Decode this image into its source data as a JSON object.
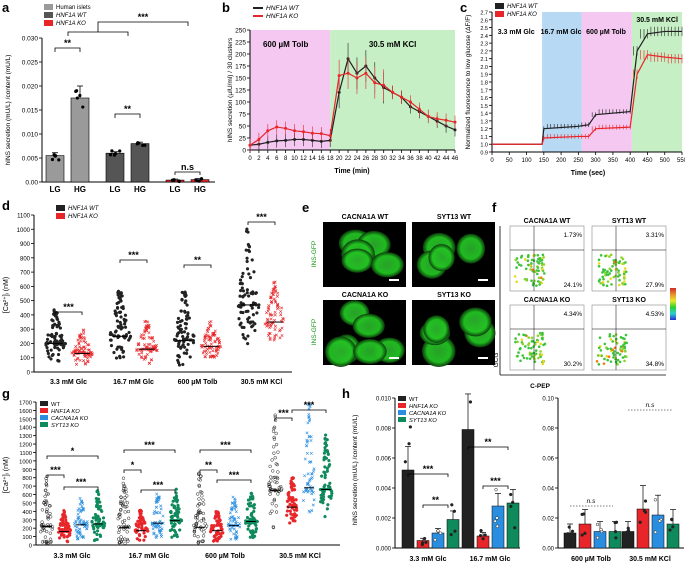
{
  "panels": {
    "a": {
      "label": "a",
      "ylabel": "hINS secretion (mU/L) /content (mU/L)",
      "yticks": [
        "0.00",
        "0.005",
        "0.010",
        "0.015",
        "0.020",
        "0.025",
        "0.030"
      ],
      "legend": [
        "Human islets",
        "HNF1A WT",
        "HNF1A KO"
      ],
      "xlabels": [
        "LG",
        "HG",
        "LG",
        "HG",
        "LG",
        "HG"
      ],
      "sig": [
        "**",
        "**",
        "n.s",
        "***"
      ]
    },
    "b": {
      "label": "b",
      "ylabel": "hINS secretion (µIU/ml) / 30 clusters",
      "xlabel": "Time (min)",
      "yticks": [
        "0",
        "25",
        "50",
        "75",
        "100",
        "125",
        "150",
        "175",
        "200",
        "225",
        "250"
      ],
      "xticks": [
        "0",
        "2",
        "4",
        "6",
        "8",
        "10",
        "12",
        "14",
        "16",
        "18",
        "20",
        "22",
        "24",
        "26",
        "28",
        "30",
        "32",
        "34",
        "36",
        "38",
        "40",
        "42",
        "44",
        "46"
      ],
      "legend": [
        "HNF1A WT",
        "HNF1A KO"
      ],
      "zones": [
        "600 µM Tolb",
        "30.5 mM KCl"
      ]
    },
    "c": {
      "label": "c",
      "ylabel": "Normalized fluorescence to low glucose (ΔF/F)",
      "xlabel": "Time (sec)",
      "yticks": [
        "0.9",
        "1.0",
        "1.1",
        "1.2",
        "1.3",
        "1.4",
        "1.5",
        "1.6",
        "1.7",
        "1.8",
        "1.9",
        "2.0",
        "2.1",
        "2.2",
        "2.3",
        "2.4",
        "2.5",
        "2.6",
        "2.7"
      ],
      "xticks": [
        "0",
        "50",
        "100",
        "150",
        "200",
        "250",
        "300",
        "350",
        "400",
        "450",
        "500",
        "550"
      ],
      "legend": [
        "HNF1A WT",
        "HNF1A KO"
      ],
      "zones": [
        "3.3 mM Glc",
        "16.7 mM Glc",
        "600 µM Tolb",
        "30.5 mM KCl"
      ]
    },
    "d": {
      "label": "d",
      "ylabel": "[Ca²⁺]ᵢ (nM)",
      "yticks": [
        "0",
        "100",
        "200",
        "300",
        "400",
        "500",
        "600",
        "700",
        "800",
        "900",
        "1000",
        "1100"
      ],
      "legend": [
        "HNF1A WT",
        "HNF1A KO"
      ],
      "groups": [
        "3.3 mM Glc",
        "16.7 mM Glc",
        "600 µM Tolb",
        "30.5 mM KCl"
      ],
      "sig": [
        "***",
        "***",
        "**",
        "***"
      ]
    },
    "e": {
      "label": "e",
      "titles": [
        "CACNA1A WT",
        "SYT13 WT",
        "CACNA1A KO",
        "SYT13 KO"
      ],
      "side": [
        "INS-GFP",
        "INS-GFP"
      ]
    },
    "f": {
      "label": "f",
      "titles": [
        "CACNA1A WT",
        "SYT13 WT",
        "CACNA1A KO",
        "SYT13 KO"
      ],
      "q_top": [
        "1.73%",
        "3.31%",
        "4.34%",
        "4.53%"
      ],
      "q_bot": [
        "24.1%",
        "27.9%",
        "30.2%",
        "34.8%"
      ],
      "xlabel": "C-PEP",
      "ylabel": "GCG"
    },
    "g": {
      "label": "g",
      "ylabel": "[Ca²⁺]ᵢ (nM)",
      "yticks": [
        "0",
        "100",
        "200",
        "300",
        "400",
        "500",
        "600",
        "700",
        "800",
        "900",
        "1000",
        "1100",
        "1200",
        "1300",
        "1400",
        "1500",
        "1600",
        "1700"
      ],
      "legend": [
        "WT",
        "HNF1A KO",
        "CACNA1A KO",
        "SYT13 KO"
      ],
      "groups": [
        "3.3 mM Glc",
        "16.7 mM Glc",
        "600 µM Tolb",
        "30.5 mM KCl"
      ],
      "sig": [
        "***",
        "*",
        "***",
        "*",
        "***",
        "***",
        "**",
        "***",
        "***",
        "***",
        "***"
      ]
    },
    "h": {
      "label": "h",
      "ylabel": "hINS secretion (mU/L) /content (mU/L)",
      "yticks_left": [
        "0.000",
        "0.002",
        "0.004",
        "0.006",
        "0.008",
        "0.010"
      ],
      "yticks_right": [
        "0.00",
        "0.02",
        "0.04",
        "0.06",
        "0.08",
        "0.10"
      ],
      "legend": [
        "WT",
        "HNF1A KO",
        "CACNA1A KO",
        "SYT13 KO"
      ],
      "groups": [
        "3.3 mM Glc",
        "16.7 mM Glc",
        "600 µM Tolb",
        "30.5 mM KCl"
      ],
      "sig": [
        "***",
        "**",
        "**",
        "***",
        "n.s",
        "n.s"
      ]
    }
  },
  "colors": {
    "black": "#222222",
    "red": "#e8262a",
    "blue": "#2a8ee0",
    "green": "#0f8a5c",
    "gray": "#9a9a9a",
    "pink": "#f5c8f2",
    "lightblue": "#b7d9f4",
    "lightgreen": "#c6efc5"
  },
  "chart_data": [
    {
      "id": "a",
      "type": "bar",
      "title": "",
      "categories": [
        "Human islets LG",
        "Human islets HG",
        "HNF1A WT LG",
        "HNF1A WT HG",
        "HNF1A KO LG",
        "HNF1A KO HG"
      ],
      "values": [
        0.0055,
        0.0175,
        0.006,
        0.008,
        0.0004,
        0.0005
      ],
      "ylim": [
        0,
        0.03
      ]
    },
    {
      "id": "b",
      "type": "line",
      "x": [
        0,
        2,
        4,
        6,
        8,
        10,
        12,
        14,
        16,
        18,
        20,
        22,
        24,
        26,
        28,
        30,
        32,
        34,
        36,
        38,
        40,
        42,
        44,
        46
      ],
      "series": [
        {
          "name": "HNF1A WT",
          "values": [
            10,
            12,
            16,
            19,
            20,
            22,
            22,
            20,
            18,
            20,
            120,
            190,
            160,
            175,
            150,
            130,
            120,
            110,
            90,
            80,
            70,
            60,
            50,
            42
          ]
        },
        {
          "name": "HNF1A KO",
          "values": [
            10,
            22,
            40,
            48,
            45,
            40,
            38,
            35,
            34,
            30,
            155,
            160,
            150,
            160,
            140,
            135,
            120,
            110,
            100,
            85,
            70,
            65,
            62,
            58
          ]
        }
      ],
      "ylim": [
        0,
        250
      ]
    },
    {
      "id": "c",
      "type": "line",
      "x": [
        0,
        100,
        145,
        150,
        250,
        280,
        300,
        400,
        420,
        450,
        500,
        550
      ],
      "series": [
        {
          "name": "HNF1A WT",
          "values": [
            1.0,
            1.0,
            1.0,
            1.2,
            1.23,
            1.25,
            1.38,
            1.42,
            2.2,
            2.42,
            2.45,
            2.45
          ]
        },
        {
          "name": "HNF1A KO",
          "values": [
            1.0,
            1.0,
            1.0,
            1.08,
            1.1,
            1.1,
            1.2,
            1.22,
            1.9,
            2.15,
            2.12,
            2.1
          ]
        }
      ],
      "ylim": [
        0.9,
        2.7
      ]
    },
    {
      "id": "d",
      "type": "scatter",
      "categories": [
        "3.3 mM Glc",
        "16.7 mM Glc",
        "600 µM Tolb",
        "30.5 mM KCl"
      ],
      "series": [
        {
          "name": "HNF1A WT",
          "medians": [
            200,
            250,
            220,
            470
          ]
        },
        {
          "name": "HNF1A KO",
          "medians": [
            130,
            160,
            180,
            350
          ]
        }
      ],
      "ylim": [
        0,
        1100
      ]
    },
    {
      "id": "g",
      "type": "scatter",
      "categories": [
        "3.3 mM Glc",
        "16.7 mM Glc",
        "600 µM Tolb",
        "30.5 mM KCl"
      ],
      "series": [
        {
          "name": "WT",
          "medians": [
            220,
            210,
            210,
            650
          ]
        },
        {
          "name": "HNF1A KO",
          "medians": [
            160,
            170,
            170,
            450
          ]
        },
        {
          "name": "CACNA1A KO",
          "medians": [
            240,
            260,
            230,
            680
          ]
        },
        {
          "name": "SYT13 KO",
          "medians": [
            250,
            290,
            280,
            660
          ]
        }
      ],
      "ylim": [
        0,
        1700
      ]
    },
    {
      "id": "h",
      "type": "bar",
      "categories": [
        "3.3 mM Glc",
        "16.7 mM Glc"
      ],
      "series": [
        {
          "name": "WT",
          "values": [
            0.0052,
            0.0079
          ]
        },
        {
          "name": "HNF1A KO",
          "values": [
            0.0005,
            0.0008
          ]
        },
        {
          "name": "CACNA1A KO",
          "values": [
            0.001,
            0.0028
          ]
        },
        {
          "name": "SYT13 KO",
          "values": [
            0.0019,
            0.003
          ]
        }
      ],
      "ylim": [
        0,
        0.01
      ]
    },
    {
      "id": "h2",
      "type": "bar",
      "categories": [
        "600 µM Tolb",
        "30.5 mM KCl"
      ],
      "series": [
        {
          "name": "WT",
          "values": [
            0.01,
            0.011
          ]
        },
        {
          "name": "HNF1A KO",
          "values": [
            0.016,
            0.026
          ]
        },
        {
          "name": "CACNA1A KO",
          "values": [
            0.011,
            0.022
          ]
        },
        {
          "name": "SYT13 KO",
          "values": [
            0.011,
            0.016
          ]
        }
      ],
      "ylim": [
        0,
        0.1
      ]
    }
  ]
}
